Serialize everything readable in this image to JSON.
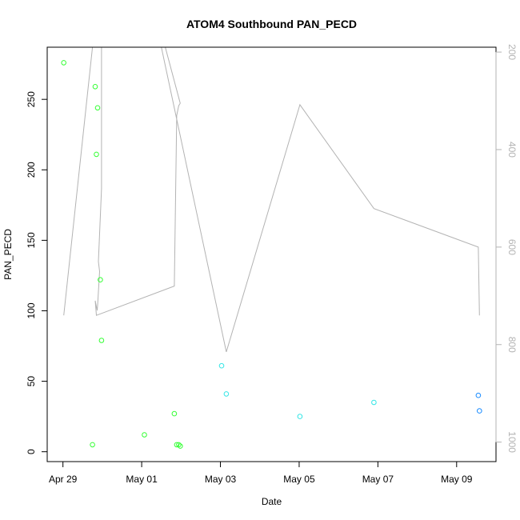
{
  "chart_data": {
    "type": "scatter",
    "title": "ATOM4 Southbound PAN_PECD",
    "xlabel": "Date",
    "ylabel": "PAN_PECD",
    "x_axis": {
      "unit": "days since Apr 29 00:00",
      "range": [
        -0.4,
        11.0
      ],
      "ticks": [
        {
          "value": 0,
          "label": "Apr 29"
        },
        {
          "value": 2,
          "label": "May 01"
        },
        {
          "value": 4,
          "label": "May 03"
        },
        {
          "value": 6,
          "label": "May 05"
        },
        {
          "value": 8,
          "label": "May 07"
        },
        {
          "value": 10,
          "label": "May 09"
        }
      ]
    },
    "y_axis": {
      "range": [
        -7,
        287
      ],
      "ticks": [
        0,
        50,
        100,
        150,
        200,
        250
      ]
    },
    "y2_axis": {
      "range": [
        1040,
        190
      ],
      "ticks": [
        200,
        400,
        600,
        800,
        1000
      ],
      "color": "#b3b3b3"
    },
    "grid": false,
    "series": [
      {
        "color": "#33ff33",
        "points": [
          [
            0.02,
            276
          ],
          [
            0.82,
            259
          ],
          [
            0.88,
            244
          ],
          [
            0.85,
            211
          ],
          [
            0.95,
            122
          ],
          [
            0.98,
            79
          ],
          [
            0.75,
            5
          ],
          [
            2.07,
            12
          ],
          [
            2.83,
            27
          ],
          [
            2.89,
            5
          ],
          [
            2.94,
            5
          ],
          [
            2.98,
            4
          ]
        ]
      },
      {
        "color": "#33e6e6",
        "points": [
          [
            4.03,
            61
          ],
          [
            4.15,
            41
          ],
          [
            6.02,
            25
          ],
          [
            7.9,
            35
          ]
        ]
      },
      {
        "color": "#1a8cff",
        "points": [
          [
            10.55,
            40
          ],
          [
            10.58,
            29
          ]
        ]
      }
    ],
    "overlay_line": {
      "color": "#b3b3b3",
      "axis": "y2",
      "points": [
        [
          0.02,
          740
        ],
        [
          0.75,
          190
        ],
        [
          0.85,
          190
        ],
        [
          0.95,
          190
        ],
        [
          0.98,
          190
        ],
        [
          0.98,
          480
        ],
        [
          0.9,
          630
        ],
        [
          0.93,
          650
        ],
        [
          0.88,
          720
        ],
        [
          0.87,
          730
        ],
        [
          0.82,
          710
        ],
        [
          0.85,
          740
        ],
        [
          2.83,
          680
        ],
        [
          2.89,
          330
        ],
        [
          2.94,
          310
        ],
        [
          2.98,
          305
        ],
        [
          2.6,
          190
        ],
        [
          2.5,
          190
        ],
        [
          4.15,
          815
        ],
        [
          6.02,
          308
        ],
        [
          7.9,
          521
        ],
        [
          10.55,
          600
        ],
        [
          10.58,
          740
        ]
      ]
    }
  }
}
